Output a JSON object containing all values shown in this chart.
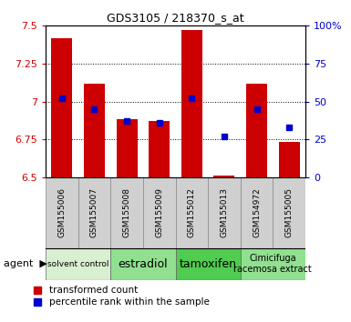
{
  "title": "GDS3105 / 218370_s_at",
  "samples": [
    "GSM155006",
    "GSM155007",
    "GSM155008",
    "GSM155009",
    "GSM155012",
    "GSM155013",
    "GSM154972",
    "GSM155005"
  ],
  "bar_values": [
    7.42,
    7.12,
    6.88,
    6.87,
    7.47,
    6.51,
    7.12,
    6.73
  ],
  "bar_base": 6.5,
  "percentile_values": [
    52,
    45,
    37,
    36,
    52,
    27,
    45,
    33
  ],
  "ylim_left": [
    6.5,
    7.5
  ],
  "ylim_right": [
    0,
    100
  ],
  "yticks_left": [
    6.5,
    6.75,
    7.0,
    7.25,
    7.5
  ],
  "ytick_labels_left": [
    "6.5",
    "6.75",
    "7",
    "7.25",
    "7.5"
  ],
  "yticks_right": [
    0,
    25,
    50,
    75,
    100
  ],
  "ytick_labels_right": [
    "0",
    "25",
    "50",
    "75",
    "100%"
  ],
  "bar_color": "#cc0000",
  "percentile_color": "#0000cc",
  "groups": [
    {
      "label": "solvent control",
      "indices": [
        0,
        1
      ],
      "color": "#d8f0d0",
      "fontsize": 6.5
    },
    {
      "label": "estradiol",
      "indices": [
        2,
        3
      ],
      "color": "#90e090",
      "fontsize": 9
    },
    {
      "label": "tamoxifen",
      "indices": [
        4,
        5
      ],
      "color": "#50cc50",
      "fontsize": 9
    },
    {
      "label": "Cimicifuga\nracemosa extract",
      "indices": [
        6,
        7
      ],
      "color": "#90e090",
      "fontsize": 7
    }
  ],
  "sample_box_color": "#d0d0d0",
  "legend_items": [
    {
      "label": "transformed count",
      "color": "#cc0000"
    },
    {
      "label": "percentile rank within the sample",
      "color": "#0000cc"
    }
  ],
  "agent_label": "agent",
  "background_color": "#ffffff",
  "bar_width": 0.65
}
